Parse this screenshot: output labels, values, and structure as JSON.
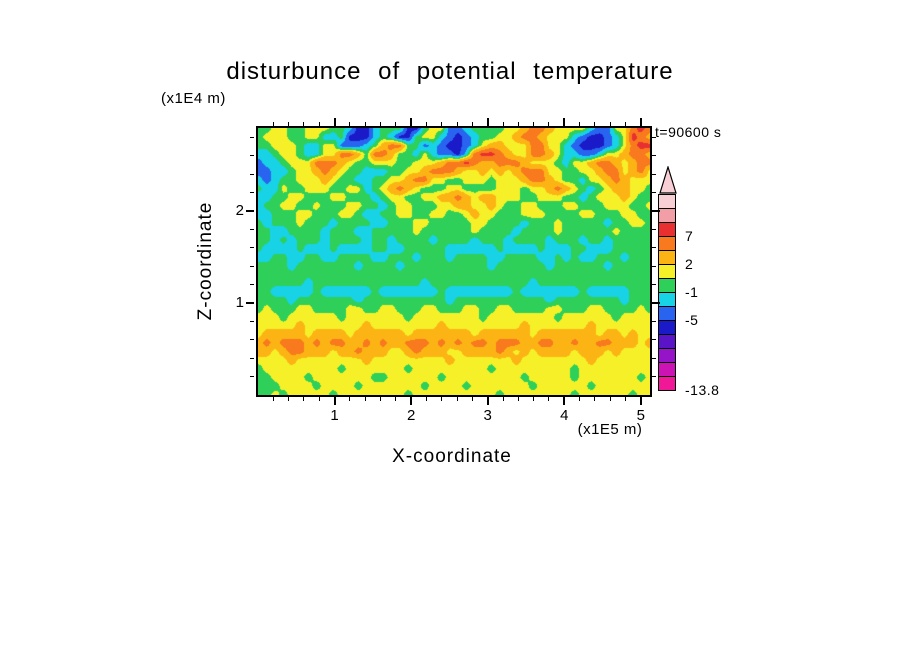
{
  "header": {
    "title": "disturbunce of potential temperature",
    "y_axis_unit": "(x1E4 m)",
    "time_label": "t=90600 s"
  },
  "axes": {
    "x_title": "X-coordinate",
    "y_title": "Z-coordinate",
    "x_unit": "(x1E5 m)",
    "x_tick_values": [
      1,
      2,
      3,
      4,
      5
    ],
    "x_tick_labels": [
      "1",
      "2",
      "3",
      "4",
      "5"
    ],
    "y_tick_values": [
      1,
      2
    ],
    "y_tick_labels": [
      "1",
      "2"
    ]
  },
  "colorbar": {
    "labels": [
      {
        "text": "7",
        "boundary_segment": 3
      },
      {
        "text": "2",
        "boundary_segment": 5
      },
      {
        "text": "-1",
        "boundary_segment": 7
      },
      {
        "text": "-5",
        "boundary_segment": 9
      },
      {
        "text": "-13.8",
        "boundary_segment": 14
      }
    ]
  },
  "chart_data": {
    "type": "heatmap",
    "title": "disturbunce of potential temperature",
    "xlabel": "X-coordinate (x1E5 m)",
    "ylabel": "Z-coordinate (x1E4 m)",
    "time_annotation": "t=90600 s",
    "xlim": [
      0,
      5.12
    ],
    "ylim": [
      0,
      2.9
    ],
    "value_min": -13.8,
    "value_max": 13.8,
    "levels": [
      -12.04,
      -10.28,
      -8.52,
      -6.76,
      -5,
      -3,
      -1,
      0.5,
      2,
      4.5,
      7,
      9.3,
      11.6
    ],
    "band_colors_low_to_high": [
      "#f01896",
      "#cc14b4",
      "#9614c8",
      "#5a14c8",
      "#1a1ac8",
      "#2864f0",
      "#18d2e6",
      "#2ed05a",
      "#f5f028",
      "#fcb414",
      "#f8791e",
      "#e83030",
      "#f29ea6",
      "#f7cfd4"
    ],
    "char_values": {
      "M": -12.9,
      "P": -11.2,
      "V": -9.4,
      "W": -7.6,
      "N": -5.9,
      "B": -4.0,
      "c": -2.0,
      "g": -0.3,
      "y": 1.2,
      "Y": 3.2,
      "o": 5.7,
      "r": 8.1,
      "p": 10.4,
      "q": 12.7
    },
    "grid_rows_top_to_bottom": [
      "ggyyggyyyggcNNcgggNNgyyBBcggggyyYooYyyyycBByyoro",
      "gyyyggyyccgNNNcgcNNgyycBNBcggyyYooYyyycBNNBcyroY",
      "ggyyygccyyBBBcgYooggBcBNNBcyYYyyyooyycBNNNBcyorr",
      "ccgyygccyyooYgooYggcycBBNcorroYyyooYyccBBcyyYooY",
      "BccgyyyoooYyggyyyggyyyYooroYYoooYyyygcyyYooYyYoo",
      "BBccgyyYoYyggcccggyyYoooYyyYyYyYoooyyggyyYooyYoy",
      "cBcggyyyYyggccggyyYooyyggyyygyyyYooYyggcyyYoYyyy",
      "gccyggyyyggyycgyYoYygggyyggggyyygyyYoYygcgyYYyyg",
      "ccggyygggyygggcgyyggyyYYoYyYYyyyggyyyggcgyyyYygg",
      "cggyyggygggyyggcgyygggyyYYyyYyggyygggyygggyyyggy",
      "ccgggyygggyygccggyyggyyggyYyygggyyyggggyygggyygg",
      "gcgggygggcggggccgggyygggggyyggggcgggygggggcggyyg",
      "ggccggggcgggccgggggyggggggyggggcggggyggggggygggg",
      "ggcgcgggcggggcggcggggcggggcgggcggggcgggcggcggggg",
      "gccccgcccgccccggccgggggccccccgccccgcccggcccggggg",
      "ccggccggccggggccgggcgggcggggccggggccgcgccgggcggg",
      "ggggcgggggggcggggcggggggggggcggggggcggggggcggggg",
      "gggggggggggggggggggggggggggggggggggggggggggggggg",
      "ggggggcgggggggggggggcggggggggggggcgggggggggggggg",
      "ggcccccgccccccgcccccccgccccccccgcccccccgcccccggg",
      "ggggcgggggggcggggggggggcgggggggggggcggggggggcggg",
      "gygggyyggggyyggyygggyygggyyggyyggggyygggyyggggyg",
      "yyygyyyyyygyyyyyyygyyyyyyyygyyyyyyyygyyyyyygyyyy",
      "yyyyyYyyyyyyyYyyyyyyyyYyyyyyyyyyYyyyyyyyYyyyyyyy",
      "yYYYYYyYYYYyYYYYYYyYYYYYYYyYYYYYYyYYYYYYYyYYyYyy",
      "YoYoooYoYooYYoYoYYoooYoYoYooYoooYYooYYoYYooYYYyY",
      "YYyYooYYYyYYoYYYyyYoYYYyyYYYYoYyYyYYYYyYYYyYyyyy",
      "yyyyYyyyyyyyyYyyyyyyyyyYyyyyyyyYyyyyyyyyYyyyyyyy",
      "gyyyyyyyyygyyyyyyygyyyyyyyyygyyyyyyyyygyyyyyyyyy",
      "ggyyyygyyyyyyyggyyyyyygyyyyyyyyygyyyyygyyyyyyygy",
      "gggyyyygyyyygyyyyyyygyyyygyyyyyyygyyyyyygyyyyyyy",
      "ggygyyyyygyyyyyyyygyyyyyyyyyygyyyyyyyygyyyyyygyy"
    ]
  }
}
